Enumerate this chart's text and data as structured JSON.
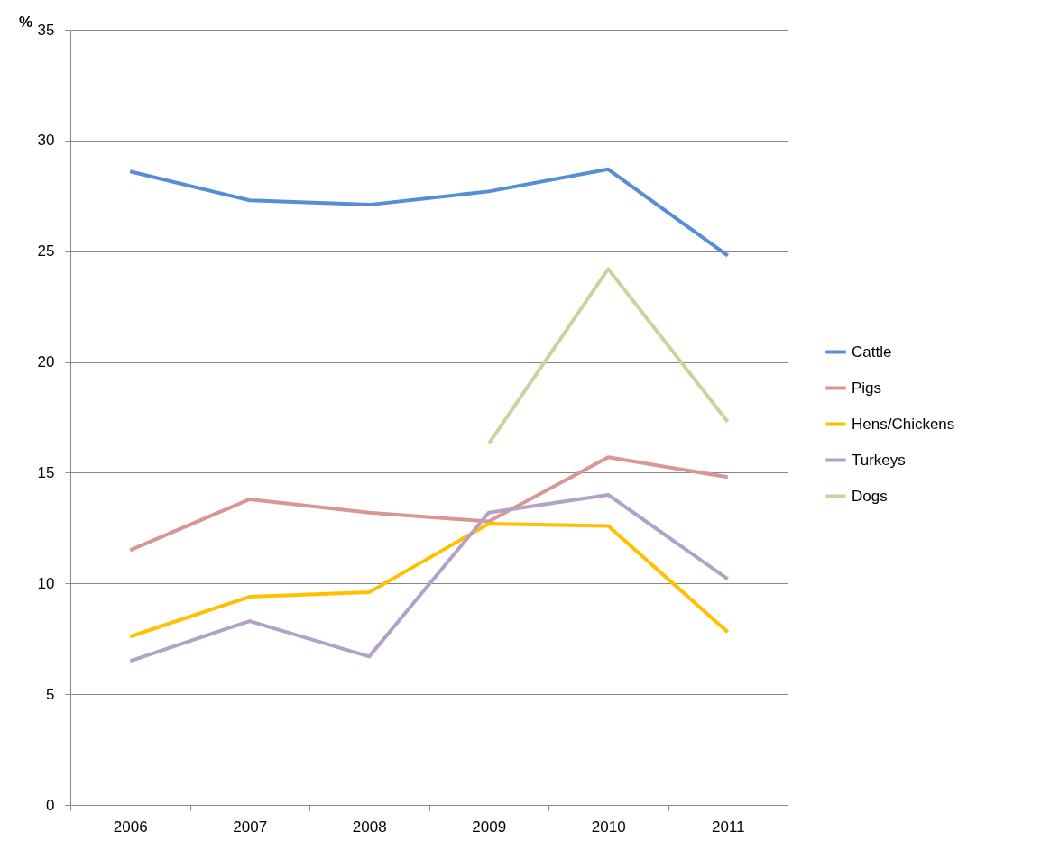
{
  "chart_data": {
    "type": "line",
    "ylabel": "%",
    "categories": [
      "2006",
      "2007",
      "2008",
      "2009",
      "2010",
      "2011"
    ],
    "series": [
      {
        "name": "Cattle",
        "color": "#558ed5",
        "values": [
          28.6,
          27.3,
          27.1,
          27.7,
          28.7,
          24.8
        ]
      },
      {
        "name": "Pigs",
        "color": "#d99694",
        "values": [
          11.5,
          13.8,
          13.2,
          12.8,
          15.7,
          14.8
        ]
      },
      {
        "name": "Hens/Chickens",
        "color": "#ffc000",
        "values": [
          7.6,
          9.4,
          9.6,
          12.7,
          12.6,
          7.8
        ]
      },
      {
        "name": "Turkeys",
        "color": "#b3a2c7",
        "values": [
          6.5,
          8.3,
          6.7,
          13.2,
          14.0,
          10.2
        ]
      },
      {
        "name": "Dogs",
        "color": "#c3d69b",
        "values": [
          null,
          null,
          null,
          16.3,
          24.2,
          17.3
        ]
      }
    ],
    "ylim": [
      0,
      35
    ],
    "yticks": [
      0,
      5,
      10,
      15,
      20,
      25,
      30,
      35
    ],
    "grid": "y",
    "legend": "right",
    "marker": "none",
    "line_style": "solid"
  }
}
